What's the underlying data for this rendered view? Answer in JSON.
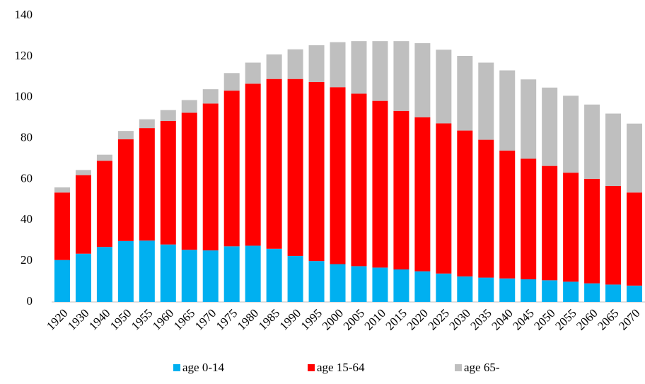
{
  "chart_data": {
    "type": "stacked_bar",
    "categories": [
      "1920",
      "1930",
      "1940",
      "1950",
      "1955",
      "1960",
      "1965",
      "1970",
      "1975",
      "1980",
      "1985",
      "1990",
      "1995",
      "2000",
      "2005",
      "2010",
      "2015",
      "2020",
      "2025",
      "2030",
      "2035",
      "2040",
      "2045",
      "2050",
      "2055",
      "2060",
      "2065",
      "2070"
    ],
    "series": [
      {
        "name": "age 0-14",
        "color": "#00b0f0",
        "values": [
          20.5,
          23.6,
          26.9,
          29.8,
          30.0,
          28.1,
          25.5,
          25.2,
          27.2,
          27.5,
          26.0,
          22.5,
          20.0,
          18.5,
          17.5,
          16.8,
          15.9,
          15.0,
          13.9,
          12.5,
          11.9,
          11.5,
          11.1,
          10.6,
          9.9,
          9.1,
          8.5,
          8.0
        ]
      },
      {
        "name": "age 15-64",
        "color": "#ff0000",
        "values": [
          33.0,
          38.4,
          42.1,
          49.7,
          55.0,
          60.4,
          67.0,
          71.8,
          76.1,
          79.2,
          83.0,
          86.5,
          87.5,
          86.5,
          84.3,
          81.5,
          77.5,
          75.3,
          73.4,
          71.3,
          67.4,
          62.5,
          58.9,
          55.9,
          53.3,
          51.1,
          48.2,
          45.5
        ]
      },
      {
        "name": "age 65-",
        "color": "#bfbfbf",
        "values": [
          2.5,
          2.5,
          3.0,
          4.1,
          4.3,
          5.3,
          6.2,
          7.0,
          8.6,
          10.3,
          12.0,
          14.5,
          18.0,
          22.0,
          25.7,
          29.2,
          34.1,
          36.2,
          36.0,
          36.5,
          37.7,
          39.2,
          38.8,
          38.3,
          37.6,
          36.3,
          35.4,
          33.7
        ]
      }
    ],
    "ylim": [
      0,
      140
    ],
    "yticks": [
      0,
      20,
      40,
      60,
      80,
      100,
      120,
      140
    ],
    "grid": false
  }
}
